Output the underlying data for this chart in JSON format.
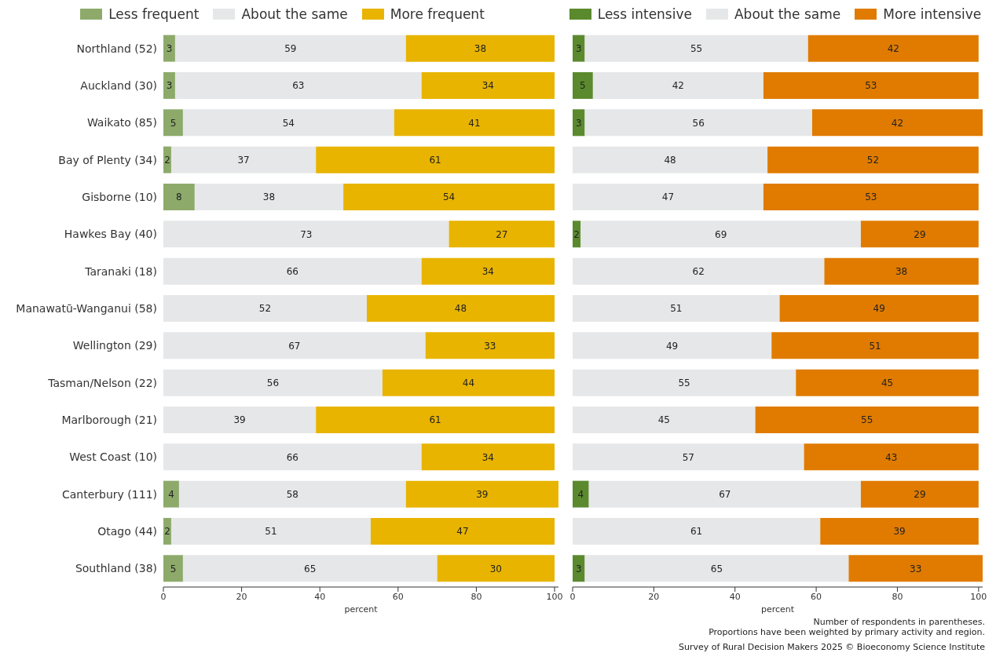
{
  "chart_data": [
    {
      "type": "bar",
      "orientation": "horizontal",
      "stacked": true,
      "data_labels": true,
      "legend": "top",
      "xlabel": "percent",
      "xlim": [
        0,
        101
      ],
      "xticks": [
        0,
        20,
        40,
        60,
        80,
        100
      ],
      "grid": false,
      "categories": [
        "Northland (52)",
        "Auckland (30)",
        "Waikato (85)",
        "Bay of Plenty (34)",
        "Gisborne (10)",
        "Hawkes Bay (40)",
        "Taranaki (18)",
        "Manawatū-Wanganui (58)",
        "Wellington (29)",
        "Tasman/Nelson (22)",
        "Marlborough (21)",
        "West Coast (10)",
        "Canterbury (111)",
        "Otago (44)",
        "Southland (38)"
      ],
      "series": [
        {
          "name": "Less frequent",
          "color": "#8daa6b",
          "values": [
            3,
            3,
            5,
            2,
            8,
            null,
            null,
            null,
            null,
            null,
            null,
            null,
            4,
            2,
            5
          ]
        },
        {
          "name": "About the same",
          "color": "#e6e7e8",
          "values": [
            59,
            63,
            54,
            37,
            38,
            73,
            66,
            52,
            67,
            56,
            39,
            66,
            58,
            51,
            65
          ]
        },
        {
          "name": "More frequent",
          "color": "#e8b400",
          "values": [
            38,
            34,
            41,
            61,
            54,
            27,
            34,
            48,
            33,
            44,
            61,
            34,
            39,
            47,
            30
          ]
        }
      ]
    },
    {
      "type": "bar",
      "orientation": "horizontal",
      "stacked": true,
      "data_labels": true,
      "legend": "top",
      "xlabel": "percent",
      "xlim": [
        0,
        101
      ],
      "xticks": [
        0,
        20,
        40,
        60,
        80,
        100
      ],
      "grid": false,
      "tick_labels": "x",
      "categories": [
        null,
        null,
        null,
        null,
        null,
        null,
        null,
        null,
        null,
        null,
        null,
        null,
        null,
        null,
        null
      ],
      "series": [
        {
          "name": "Less intensive",
          "color": "#5b8a2e",
          "values": [
            3,
            5,
            3,
            null,
            null,
            2,
            null,
            null,
            null,
            null,
            null,
            null,
            4,
            null,
            3
          ]
        },
        {
          "name": "About the same",
          "color": "#e6e7e8",
          "values": [
            55,
            42,
            56,
            48,
            47,
            69,
            62,
            51,
            49,
            55,
            45,
            57,
            67,
            61,
            65
          ]
        },
        {
          "name": "More intensive",
          "color": "#e07b00",
          "values": [
            42,
            53,
            42,
            52,
            53,
            29,
            38,
            49,
            51,
            45,
            55,
            43,
            29,
            39,
            33
          ]
        }
      ],
      "annotations": [
        "Number of respondents in parentheses.",
        "Proportions have been weighted by primary activity and region.",
        "Survey of Rural Decision Makers 2025 © Bioeconomy Science Institute"
      ]
    }
  ]
}
